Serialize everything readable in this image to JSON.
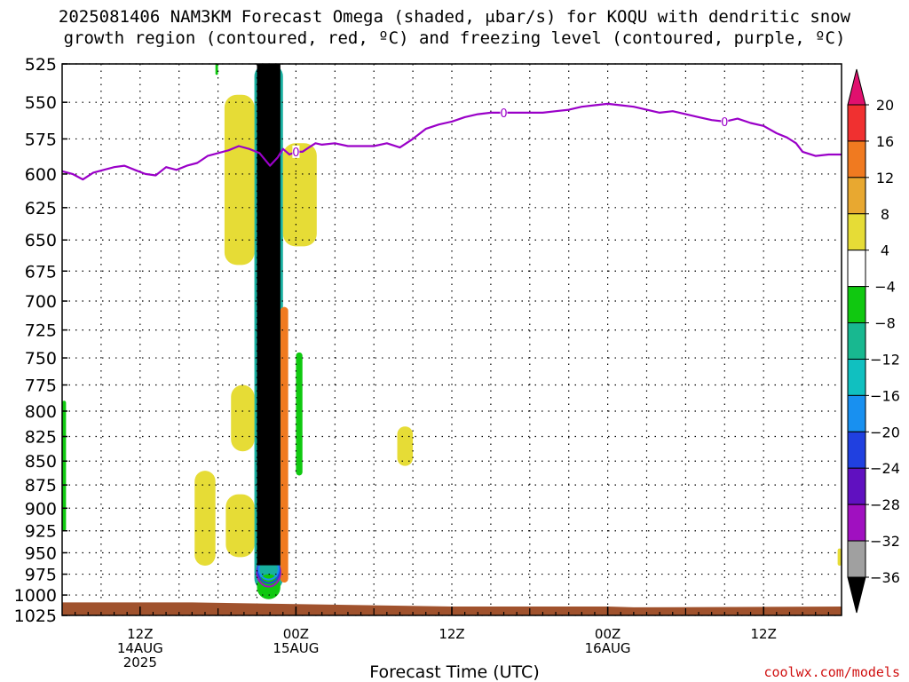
{
  "title_line1": "2025081406 NAM3KM Forecast Omega (shaded, μbar/s) for KOQU with dendritic snow",
  "title_line2": "growth region (contoured, red, ºC) and freezing level (contoured, purple, ºC)",
  "credit": "coolwx.com/models",
  "chart_data": {
    "type": "heatmap",
    "title": "2025081406 NAM3KM Forecast Omega (shaded, μbar/s) for KOQU with dendritic snow growth region (contoured, red, ºC) and freezing level (contoured, purple, ºC)",
    "xlabel": "Forecast Time (UTC)",
    "ylabel": "",
    "x_range_hours": [
      0,
      60
    ],
    "y_range": [
      525,
      1025
    ],
    "y_scale": "log-pressure, inverted",
    "grid": true,
    "y_ticks": [
      525,
      550,
      575,
      600,
      625,
      650,
      675,
      700,
      725,
      750,
      775,
      800,
      825,
      850,
      875,
      900,
      925,
      950,
      975,
      1000,
      1025
    ],
    "x_ticks": [
      {
        "hour": 6,
        "lines": [
          "12Z",
          "14AUG",
          "2025"
        ]
      },
      {
        "hour": 18,
        "lines": [
          "00Z",
          "15AUG"
        ]
      },
      {
        "hour": 30,
        "lines": [
          "12Z"
        ]
      },
      {
        "hour": 42,
        "lines": [
          "00Z",
          "16AUG"
        ]
      },
      {
        "hour": 54,
        "lines": [
          "12Z"
        ]
      }
    ],
    "colorbar": {
      "labels": [
        20,
        16,
        12,
        8,
        4,
        -4,
        -8,
        -12,
        -16,
        -20,
        -24,
        -28,
        -32,
        -36
      ],
      "colors": [
        "#e0106e",
        "#f03030",
        "#f07a20",
        "#e8a830",
        "#e6dc36",
        "#ffffff",
        "#10c810",
        "#18b890",
        "#10c0c0",
        "#1890f0",
        "#2040e0",
        "#6010c0",
        "#a010c0",
        "#a0a0a0",
        "#000000"
      ]
    },
    "freezing_level": {
      "label": "0",
      "label_hours": [
        18,
        34,
        51
      ],
      "x_hours": [
        0,
        0.8,
        1.6,
        2.4,
        3.2,
        4.0,
        4.8,
        5.6,
        6.4,
        7.2,
        8.0,
        8.8,
        9.6,
        10.4,
        11.2,
        12.0,
        12.8,
        13.6,
        14.4,
        15.2,
        16.0,
        16.6,
        17.0,
        17.5,
        18.0,
        18.5,
        19.0,
        19.5,
        20.0,
        21.0,
        22.0,
        23.0,
        24.0,
        25.0,
        26.0,
        27.0,
        28.0,
        29.0,
        30.0,
        31.0,
        32.0,
        33.0,
        34.0,
        35.0,
        36.0,
        37.0,
        38.0,
        39.0,
        40.0,
        41.0,
        42.0,
        43.0,
        44.0,
        45.0,
        46.0,
        47.0,
        48.0,
        49.0,
        50.0,
        51.0,
        52.0,
        53.0,
        54.0,
        55.0,
        55.8,
        56.5,
        57.0,
        58.0,
        59.0,
        60.0
      ],
      "pressure_hpa": [
        598,
        600,
        604,
        599,
        597,
        595,
        594,
        597,
        600,
        601,
        595,
        597,
        594,
        592,
        587,
        585,
        583,
        580,
        582,
        585,
        594,
        588,
        582,
        586,
        584,
        584,
        581,
        578,
        579,
        578,
        580,
        580,
        580,
        578,
        581,
        575,
        568,
        565,
        563,
        560,
        558,
        557,
        557,
        557,
        557,
        557,
        556,
        555,
        553,
        552,
        551,
        552,
        553,
        555,
        557,
        556,
        558,
        560,
        562,
        563,
        561,
        564,
        566,
        571,
        574,
        578,
        584,
        587,
        586,
        586
      ]
    },
    "omega_regions": [
      {
        "value_class": "< -36",
        "x_hours": [
          15.0,
          16.8
        ],
        "p_hpa": [
          525,
          975
        ]
      },
      {
        "value_class": "-32 to -4",
        "x_hours": [
          14.8,
          17.0
        ],
        "p_hpa": [
          525,
          995
        ]
      },
      {
        "value_class": "4 to 8",
        "x_hours": [
          12.5,
          14.8
        ],
        "p_hpa": [
          545,
          670
        ]
      },
      {
        "value_class": "4 to 8",
        "x_hours": [
          17.0,
          19.6
        ],
        "p_hpa": [
          578,
          655
        ]
      },
      {
        "value_class": "4 to 8",
        "x_hours": [
          13.0,
          14.8
        ],
        "p_hpa": [
          775,
          840
        ]
      },
      {
        "value_class": "4 to 8",
        "x_hours": [
          12.6,
          14.8
        ],
        "p_hpa": [
          885,
          955
        ]
      },
      {
        "value_class": "4 to 8",
        "x_hours": [
          10.2,
          11.8
        ],
        "p_hpa": [
          860,
          965
        ]
      },
      {
        "value_class": "4 to 8",
        "x_hours": [
          25.8,
          27.0
        ],
        "p_hpa": [
          815,
          855
        ]
      },
      {
        "value_class": "4 to 8",
        "x_hours": [
          59.7,
          60.0
        ],
        "p_hpa": [
          945,
          965
        ]
      },
      {
        "value_class": "8 to 16",
        "x_hours": [
          16.8,
          17.4
        ],
        "p_hpa": [
          705,
          985
        ]
      },
      {
        "value_class": "-8 to -4",
        "x_hours": [
          18.0,
          18.5
        ],
        "p_hpa": [
          745,
          865
        ]
      },
      {
        "value_class": "-8 to -4",
        "x_hours": [
          0,
          0.3
        ],
        "p_hpa": [
          790,
          925
        ]
      },
      {
        "value_class": "-8 to -4",
        "x_hours": [
          11.8,
          12.0
        ],
        "p_hpa": [
          525,
          532
        ]
      },
      {
        "value_class": "-20 to -8",
        "x_hours": [
          15.0,
          16.8
        ],
        "p_hpa": [
          975,
          1005
        ]
      }
    ],
    "terrain_surface_hpa": {
      "x_hours": [
        0,
        10,
        18,
        30,
        42,
        44,
        60
      ],
      "pressure_hpa": [
        1009,
        1009,
        1011,
        1014,
        1014,
        1015,
        1014
      ]
    }
  }
}
